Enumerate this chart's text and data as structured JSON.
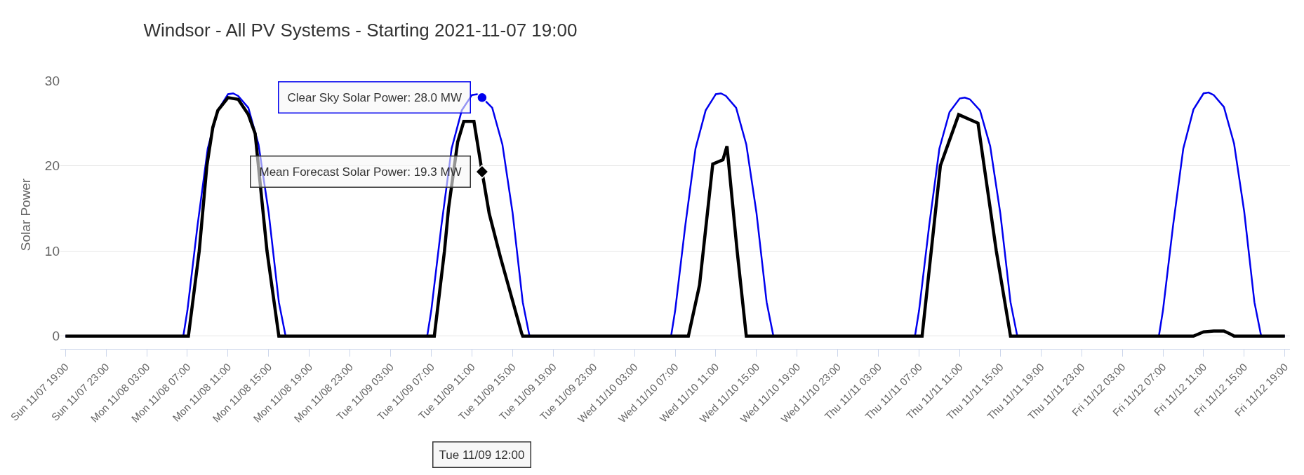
{
  "chart_data": {
    "type": "line",
    "title": "Windsor - All PV Systems - Starting 2021-11-07 19:00",
    "ylabel": "Solar Power",
    "series": [
      {
        "color": "#0000ee",
        "x": [
          "2021-11-07T19:00",
          "2021-11-08T06:36",
          "2021-11-08T07:00",
          "2021-11-08T08:00",
          "2021-11-08T09:00",
          "2021-11-08T10:00",
          "2021-11-08T11:00",
          "2021-11-08T11:30",
          "2021-11-08T12:00",
          "2021-11-08T13:00",
          "2021-11-08T14:00",
          "2021-11-08T15:00",
          "2021-11-08T16:00",
          "2021-11-08T16:40",
          "2021-11-09T06:36",
          "2021-11-09T07:00",
          "2021-11-09T08:00",
          "2021-11-09T09:00",
          "2021-11-09T10:00",
          "2021-11-09T11:00",
          "2021-11-09T11:30",
          "2021-11-09T12:00",
          "2021-11-09T13:00",
          "2021-11-09T14:00",
          "2021-11-09T15:00",
          "2021-11-09T16:00",
          "2021-11-09T16:40",
          "2021-11-10T06:36",
          "2021-11-10T07:00",
          "2021-11-10T08:00",
          "2021-11-10T09:00",
          "2021-11-10T10:00",
          "2021-11-10T11:00",
          "2021-11-10T11:30",
          "2021-11-10T12:00",
          "2021-11-10T13:00",
          "2021-11-10T14:00",
          "2021-11-10T15:00",
          "2021-11-10T16:00",
          "2021-11-10T16:40",
          "2021-11-11T06:36",
          "2021-11-11T07:00",
          "2021-11-11T08:00",
          "2021-11-11T09:00",
          "2021-11-11T10:00",
          "2021-11-11T11:00",
          "2021-11-11T11:30",
          "2021-11-11T12:00",
          "2021-11-11T13:00",
          "2021-11-11T14:00",
          "2021-11-11T15:00",
          "2021-11-11T16:00",
          "2021-11-11T16:40",
          "2021-11-12T06:36",
          "2021-11-12T07:00",
          "2021-11-12T08:00",
          "2021-11-12T09:00",
          "2021-11-12T10:00",
          "2021-11-12T11:00",
          "2021-11-12T11:30",
          "2021-11-12T12:00",
          "2021-11-12T13:00",
          "2021-11-12T14:00",
          "2021-11-12T15:00",
          "2021-11-12T16:00",
          "2021-11-12T16:40",
          "2021-11-12T19:00"
        ],
        "values": [
          0,
          0,
          3,
          13,
          22,
          26.5,
          28.4,
          28.5,
          28.2,
          26.8,
          22.5,
          14.5,
          4,
          0,
          0,
          3,
          13,
          22,
          26.5,
          28.3,
          28.4,
          28.0,
          26.8,
          22.5,
          14.5,
          4,
          0,
          0,
          3,
          13,
          22,
          26.5,
          28.4,
          28.5,
          28.2,
          26.8,
          22.5,
          14.5,
          4,
          0,
          0,
          3,
          13,
          22,
          26.3,
          27.9,
          28.0,
          27.8,
          26.5,
          22.3,
          14.4,
          4,
          0,
          0,
          3,
          13,
          22,
          26.6,
          28.5,
          28.6,
          28.3,
          26.9,
          22.6,
          14.6,
          4,
          0,
          0
        ]
      },
      {
        "color": "#000000",
        "x": [
          "2021-11-07T19:00",
          "2021-11-08T07:06",
          "2021-11-08T08:10",
          "2021-11-08T08:55",
          "2021-11-08T09:30",
          "2021-11-08T10:00",
          "2021-11-08T11:00",
          "2021-11-08T12:00",
          "2021-11-08T13:00",
          "2021-11-08T13:40",
          "2021-11-08T14:50",
          "2021-11-08T16:00",
          "2021-11-09T07:18",
          "2021-11-09T08:18",
          "2021-11-09T08:42",
          "2021-11-09T09:36",
          "2021-11-09T10:12",
          "2021-11-09T11:12",
          "2021-11-09T12:00",
          "2021-11-09T12:42",
          "2021-11-09T13:48",
          "2021-11-09T15:54",
          "2021-11-09T16:00",
          "2021-11-10T08:18",
          "2021-11-10T09:24",
          "2021-11-10T10:42",
          "2021-11-10T11:42",
          "2021-11-10T12:06",
          "2021-11-10T13:06",
          "2021-11-10T14:00",
          "2021-11-11T07:18",
          "2021-11-11T09:06",
          "2021-11-11T10:54",
          "2021-11-11T12:48",
          "2021-11-11T14:36",
          "2021-11-11T16:00",
          "2021-11-12T10:00",
          "2021-11-12T11:00",
          "2021-11-12T12:00",
          "2021-11-12T13:00",
          "2021-11-12T13:42",
          "2021-11-12T14:00",
          "2021-11-12T19:00"
        ],
        "values": [
          0,
          0,
          10,
          20,
          24.5,
          26.5,
          28,
          27.8,
          26,
          23.8,
          10,
          0,
          0,
          10,
          15,
          22.8,
          25.2,
          25.2,
          19.3,
          14.4,
          9.3,
          0.3,
          0,
          0,
          6,
          20.2,
          20.7,
          22.3,
          10,
          0,
          0,
          20,
          26.0,
          25.0,
          10,
          0,
          0,
          0.5,
          0.6,
          0.6,
          0.2,
          0,
          0
        ]
      }
    ],
    "annotations": [
      {
        "text": "Clear Sky Solar Power: 28.0 MW",
        "x": "2021-11-09T12:00",
        "y": 28.0
      },
      {
        "text": "Mean Forecast Solar Power: 19.3 MW",
        "x": "2021-11-09T12:00",
        "y": 19.3
      },
      "Tue 11/09 12:00"
    ],
    "xlim": [
      "2021-11-07T18:30",
      "2021-11-12T19:30"
    ],
    "xticks": [
      {
        "value": "2021-11-07T19:00",
        "label": "Sun 11/07 19:00"
      },
      {
        "value": "2021-11-07T23:00",
        "label": "Sun 11/07 23:00"
      },
      {
        "value": "2021-11-08T03:00",
        "label": "Mon 11/08 03:00"
      },
      {
        "value": "2021-11-08T07:00",
        "label": "Mon 11/08 07:00"
      },
      {
        "value": "2021-11-08T11:00",
        "label": "Mon 11/08 11:00"
      },
      {
        "value": "2021-11-08T15:00",
        "label": "Mon 11/08 15:00"
      },
      {
        "value": "2021-11-08T19:00",
        "label": "Mon 11/08 19:00"
      },
      {
        "value": "2021-11-08T23:00",
        "label": "Mon 11/08 23:00"
      },
      {
        "value": "2021-11-09T03:00",
        "label": "Tue 11/09 03:00"
      },
      {
        "value": "2021-11-09T07:00",
        "label": "Tue 11/09 07:00"
      },
      {
        "value": "2021-11-09T11:00",
        "label": "Tue 11/09 11:00"
      },
      {
        "value": "2021-11-09T15:00",
        "label": "Tue 11/09 15:00"
      },
      {
        "value": "2021-11-09T19:00",
        "label": "Tue 11/09 19:00"
      },
      {
        "value": "2021-11-09T23:00",
        "label": "Tue 11/09 23:00"
      },
      {
        "value": "2021-11-10T03:00",
        "label": "Wed 11/10 03:00"
      },
      {
        "value": "2021-11-10T07:00",
        "label": "Wed 11/10 07:00"
      },
      {
        "value": "2021-11-10T11:00",
        "label": "Wed 11/10 11:00"
      },
      {
        "value": "2021-11-10T15:00",
        "label": "Wed 11/10 15:00"
      },
      {
        "value": "2021-11-10T19:00",
        "label": "Wed 11/10 19:00"
      },
      {
        "value": "2021-11-10T23:00",
        "label": "Wed 11/10 23:00"
      },
      {
        "value": "2021-11-11T03:00",
        "label": "Thu 11/11 03:00"
      },
      {
        "value": "2021-11-11T07:00",
        "label": "Thu 11/11 07:00"
      },
      {
        "value": "2021-11-11T11:00",
        "label": "Thu 11/11 11:00"
      },
      {
        "value": "2021-11-11T15:00",
        "label": "Thu 11/11 15:00"
      },
      {
        "value": "2021-11-11T19:00",
        "label": "Thu 11/11 19:00"
      },
      {
        "value": "2021-11-11T23:00",
        "label": "Thu 11/11 23:00"
      },
      {
        "value": "2021-11-12T03:00",
        "label": "Fri 11/12 03:00"
      },
      {
        "value": "2021-11-12T07:00",
        "label": "Fri 11/12 07:00"
      },
      {
        "value": "2021-11-12T11:00",
        "label": "Fri 11/12 11:00"
      },
      {
        "value": "2021-11-12T15:00",
        "label": "Fri 11/12 15:00"
      },
      {
        "value": "2021-11-12T19:00",
        "label": "Fri 11/12 19:00"
      }
    ],
    "ylim": [
      -1.5,
      30
    ],
    "yticks": [
      0,
      10,
      20,
      30
    ],
    "grid": "y",
    "legend": false,
    "marker": "none",
    "line_style": "solid"
  }
}
